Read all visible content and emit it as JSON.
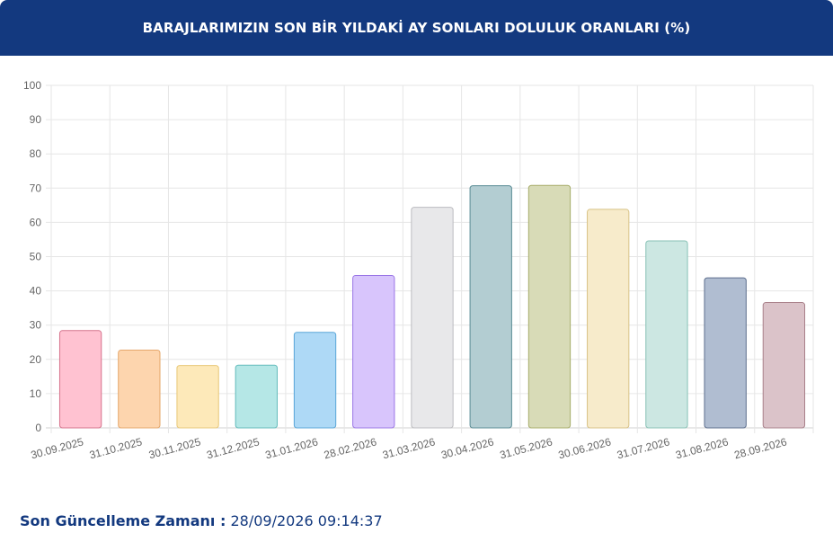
{
  "header": {
    "title": "BARAJLARIMIZIN SON BİR YILDAKİ AY SONLARI DOLULUK ORANLARI (%)"
  },
  "chart_data": {
    "type": "bar",
    "title": "BARAJLARIMIZIN SON BİR YILDAKİ AY SONLARI DOLULUK ORANLARI (%)",
    "categories": [
      "30.09.2025",
      "31.10.2025",
      "30.11.2025",
      "31.12.2025",
      "31.01.2026",
      "28.02.2026",
      "31.03.2026",
      "30.04.2026",
      "31.05.2026",
      "30.06.2026",
      "31.07.2026",
      "31.08.2026",
      "28.09.2026"
    ],
    "values": [
      28.4,
      22.7,
      18.2,
      18.3,
      27.9,
      44.5,
      64.4,
      70.7,
      70.8,
      63.8,
      54.6,
      43.8,
      36.6
    ],
    "ylim": [
      0,
      100
    ],
    "yticks": [
      0,
      10,
      20,
      30,
      40,
      50,
      60,
      70,
      80,
      90,
      100
    ],
    "grid": true,
    "bar_colors": [
      {
        "fill": "#ffc2d1",
        "stroke": "#d6738c"
      },
      {
        "fill": "#fdd5ae",
        "stroke": "#e5a76b"
      },
      {
        "fill": "#fde9b9",
        "stroke": "#e8c877"
      },
      {
        "fill": "#b5e7e6",
        "stroke": "#62bbbb"
      },
      {
        "fill": "#aed9f6",
        "stroke": "#5aa6d8"
      },
      {
        "fill": "#d8c5fc",
        "stroke": "#9a76e6"
      },
      {
        "fill": "#e8e8ea",
        "stroke": "#bcbcc0"
      },
      {
        "fill": "#b3cdd2",
        "stroke": "#5a8c95"
      },
      {
        "fill": "#d8dbb7",
        "stroke": "#a7ad6a"
      },
      {
        "fill": "#f7ebcb",
        "stroke": "#d8c285"
      },
      {
        "fill": "#cce7e2",
        "stroke": "#88c2b6"
      },
      {
        "fill": "#b0bdd1",
        "stroke": "#5c6e8d"
      },
      {
        "fill": "#dbc3c9",
        "stroke": "#a9808a"
      }
    ]
  },
  "footer": {
    "label": "Son Güncelleme Zamanı :",
    "value": "28/09/2026 09:14:37"
  }
}
